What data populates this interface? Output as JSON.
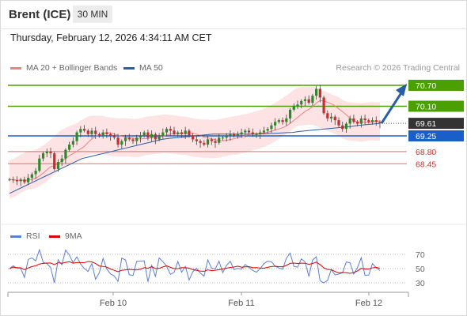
{
  "header": {
    "instrument": "Brent (ICE)",
    "timeframe": "30 MIN"
  },
  "datetime": "Thursday, February 12, 2026 4:34:11 AM CET",
  "credit": "Research © 2026 Trading Central",
  "legend_main": [
    {
      "label": "MA 20 + Bollinger Bands",
      "color": "#f08080"
    },
    {
      "label": "MA 50",
      "color": "#2a5da8"
    }
  ],
  "legend_rsi": [
    {
      "label": "RSI",
      "color": "#5b7fd6"
    },
    {
      "label": "9MA",
      "color": "#e00000"
    }
  ],
  "colors": {
    "resistance": "#4aa000",
    "support": "#e07070",
    "pivot": "#1a5fc8",
    "current": "#333333",
    "arrow": "#2a5da8",
    "candle_up": "#2a8a2a",
    "candle_down": "#c03030"
  },
  "chart_data": {
    "type": "candlestick",
    "instrument": "Brent (ICE)",
    "interval": "30 MIN",
    "x_ticks": [
      "Feb 10",
      "Feb 11",
      "Feb 12"
    ],
    "price_ylim": [
      67.8,
      71.2
    ],
    "levels": [
      {
        "label": "70.70",
        "value": 70.7,
        "kind": "resistance"
      },
      {
        "label": "70.10",
        "value": 70.1,
        "kind": "resistance"
      },
      {
        "label": "69.61",
        "value": 69.61,
        "kind": "current"
      },
      {
        "label": "69.25",
        "value": 69.25,
        "kind": "pivot"
      },
      {
        "label": "68.80",
        "value": 68.8,
        "kind": "support"
      },
      {
        "label": "68.45",
        "value": 68.45,
        "kind": "support"
      }
    ],
    "closes": [
      68.0,
      67.98,
      67.95,
      68.0,
      67.92,
      68.05,
      68.15,
      68.25,
      68.6,
      68.75,
      68.8,
      68.75,
      68.3,
      68.5,
      68.6,
      68.85,
      69.0,
      69.1,
      69.35,
      69.45,
      69.4,
      69.3,
      69.4,
      69.3,
      69.25,
      69.35,
      69.3,
      69.25,
      69.2,
      69.0,
      69.1,
      69.2,
      69.15,
      69.1,
      69.2,
      69.25,
      69.35,
      69.2,
      69.3,
      69.15,
      69.25,
      69.35,
      69.45,
      69.4,
      69.3,
      69.35,
      69.3,
      69.4,
      69.25,
      69.15,
      69.1,
      69.05,
      69.0,
      69.15,
      69.1,
      69.05,
      69.2,
      69.2,
      69.25,
      69.3,
      69.25,
      69.3,
      69.35,
      69.4,
      69.35,
      69.3,
      69.3,
      69.35,
      69.4,
      69.45,
      69.55,
      69.65,
      69.7,
      69.65,
      69.75,
      70.0,
      70.1,
      70.15,
      70.25,
      70.3,
      70.2,
      70.4,
      70.6,
      70.35,
      69.9,
      69.75,
      69.8,
      69.7,
      69.55,
      69.45,
      69.6,
      69.75,
      69.65,
      69.6,
      69.75,
      69.7,
      69.65,
      69.7,
      69.65,
      69.61
    ],
    "ma50": [
      67.6,
      67.7,
      67.8,
      67.9,
      68.0,
      68.1,
      68.2,
      68.3,
      68.4,
      68.5,
      68.6,
      68.65,
      68.7,
      68.75,
      68.8,
      68.85,
      68.9,
      68.95,
      69.0,
      69.05,
      69.1,
      69.15,
      69.18,
      69.2,
      69.22,
      69.24,
      69.26,
      69.28,
      69.3,
      69.3,
      69.3,
      69.3,
      69.3,
      69.3,
      69.3,
      69.31,
      69.32,
      69.33,
      69.34,
      69.35,
      69.38,
      69.4,
      69.42,
      69.44,
      69.46,
      69.48,
      69.5,
      69.52,
      69.55,
      69.57,
      69.59,
      69.61
    ],
    "rsi": {
      "ylim": [
        20,
        80
      ],
      "ticks": [
        70,
        50,
        30
      ]
    }
  }
}
